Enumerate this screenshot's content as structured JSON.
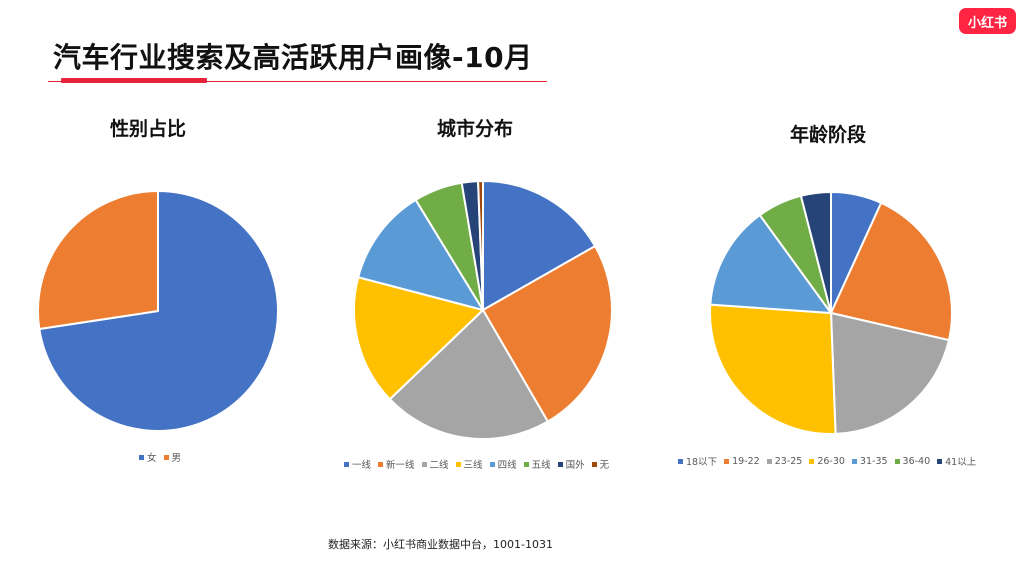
{
  "page": {
    "title": "汽车行业搜索及高活跃用户画像-10月",
    "logo": "小红书",
    "source": "数据来源：小红书商业数据中台，1001-1031",
    "accent": "#e8243c"
  },
  "chart_data": [
    {
      "type": "pie",
      "title": "性别占比",
      "categories": [
        "女",
        "男"
      ],
      "values": [
        72.6,
        27.4
      ],
      "colors": [
        "#4472c4",
        "#ed7d31"
      ],
      "legend": "bottom"
    },
    {
      "type": "pie",
      "title": "城市分布",
      "categories": [
        "一线",
        "新一线",
        "二线",
        "三线",
        "四线",
        "五线",
        "国外",
        "无"
      ],
      "values": [
        16.5,
        24.5,
        20.9,
        16.0,
        12.0,
        6.0,
        2.0,
        0.6
      ],
      "colors": [
        "#4472c4",
        "#ed7d31",
        "#a5a5a5",
        "#ffc000",
        "#5b9bd5",
        "#70ad47",
        "#264478",
        "#9e480e"
      ],
      "legend": "bottom"
    },
    {
      "type": "pie",
      "title": "年龄阶段",
      "categories": [
        "18以下",
        "19-22",
        "23-25",
        "26-30",
        "31-35",
        "36-40",
        "41以上"
      ],
      "values": [
        6.8,
        21.8,
        20.8,
        26.7,
        13.9,
        6.0,
        4.0
      ],
      "colors": [
        "#4472c4",
        "#ed7d31",
        "#a5a5a5",
        "#ffc000",
        "#5b9bd5",
        "#70ad47",
        "#264478"
      ],
      "legend": "bottom"
    }
  ]
}
